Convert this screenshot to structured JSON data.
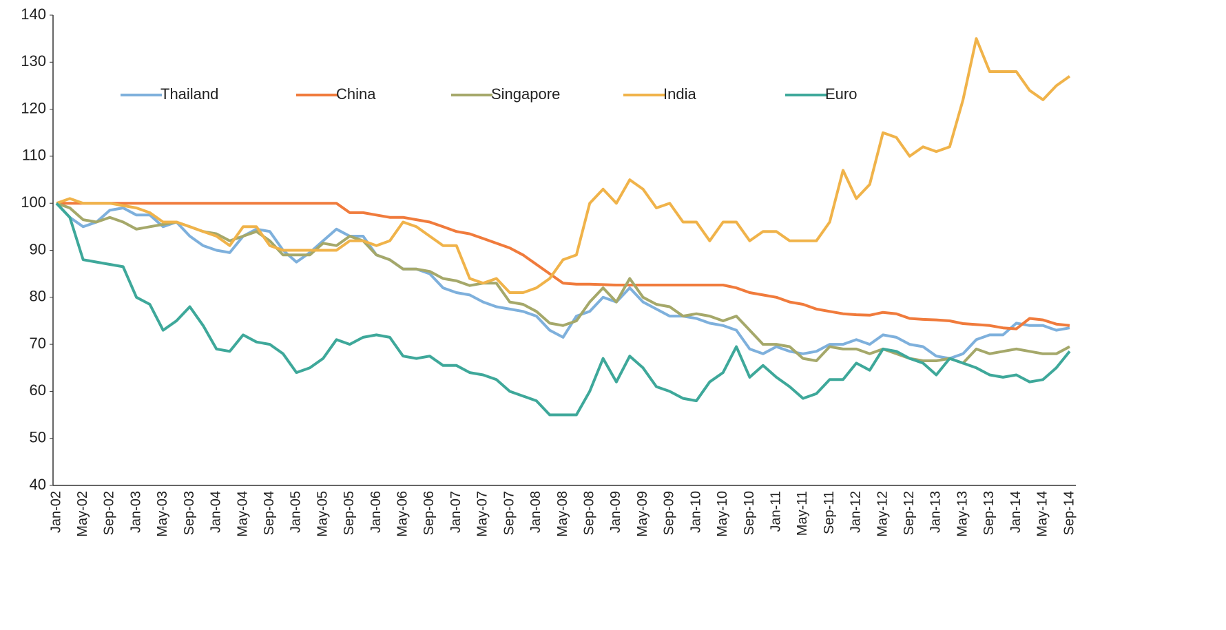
{
  "chart_data": {
    "type": "line",
    "categories": [
      "Jan-02",
      null,
      "May-02",
      null,
      "Sep-02",
      null,
      "Jan-03",
      null,
      "May-03",
      null,
      "Sep-03",
      null,
      "Jan-04",
      null,
      "May-04",
      null,
      "Sep-04",
      null,
      "Jan-05",
      null,
      "May-05",
      null,
      "Sep-05",
      null,
      "Jan-06",
      null,
      "May-06",
      null,
      "Sep-06",
      null,
      "Jan-07",
      null,
      "May-07",
      null,
      "Sep-07",
      null,
      "Jan-08",
      null,
      "May-08",
      null,
      "Sep-08",
      null,
      "Jan-09",
      null,
      "May-09",
      null,
      "Sep-09",
      null,
      "Jan-10",
      null,
      "May-10",
      null,
      "Sep-10",
      null,
      "Jan-11",
      null,
      "May-11",
      null,
      "Sep-11",
      null,
      "Jan-12",
      null,
      "May-12",
      null,
      "Sep-12",
      null,
      "Jan-13",
      null,
      "May-13",
      null,
      "Sep-13",
      null,
      "Jan-14",
      null,
      "May-14",
      null,
      "Sep-14"
    ],
    "series": [
      {
        "name": "Thailand",
        "color": "#7eb0dc",
        "values": [
          100,
          97,
          95,
          96,
          98.5,
          99,
          97.5,
          97.5,
          95,
          96,
          93,
          91,
          90,
          89.5,
          93,
          94.5,
          94,
          90,
          87.5,
          89.5,
          92,
          94.5,
          93,
          93,
          89,
          88,
          86,
          86,
          85,
          82,
          81,
          80.5,
          79,
          78,
          77.5,
          77,
          76,
          73,
          71.5,
          76,
          77,
          80,
          79,
          82,
          79,
          77.5,
          76,
          76,
          75.5,
          74.5,
          74,
          73,
          69,
          68,
          69.5,
          68.5,
          68,
          68.5,
          70,
          70,
          71,
          70,
          72,
          71.5,
          70,
          69.5,
          67.5,
          67,
          68,
          71,
          72,
          72,
          74.5,
          74,
          74,
          73,
          73.5
        ]
      },
      {
        "name": "China",
        "color": "#f07b3c",
        "values": [
          100,
          100,
          100,
          100,
          100,
          100,
          100,
          100,
          100,
          100,
          100,
          100,
          100,
          100,
          100,
          100,
          100,
          100,
          100,
          100,
          100,
          100,
          98,
          98,
          97.5,
          97,
          97,
          96.5,
          96,
          95,
          94,
          93.5,
          92.5,
          91.5,
          90.5,
          89,
          87,
          85,
          83,
          82.8,
          82.8,
          82.7,
          82.6,
          82.6,
          82.6,
          82.6,
          82.6,
          82.6,
          82.6,
          82.6,
          82.6,
          82,
          81,
          80.5,
          80,
          79,
          78.5,
          77.5,
          77,
          76.5,
          76.3,
          76.2,
          76.8,
          76.5,
          75.5,
          75.3,
          75.2,
          75,
          74.4,
          74.2,
          74,
          73.5,
          73.3,
          75.5,
          75.2,
          74.3,
          74
        ]
      },
      {
        "name": "Singapore",
        "color": "#a5a86a",
        "values": [
          100,
          99,
          96.5,
          96,
          97,
          96,
          94.5,
          95,
          95.5,
          96,
          95,
          94,
          93.5,
          92,
          93,
          94,
          92,
          89,
          89,
          89,
          91.5,
          91,
          93,
          92,
          89,
          88,
          86,
          86,
          85.5,
          84,
          83.5,
          82.5,
          83,
          83,
          79,
          78.5,
          77,
          74.5,
          74,
          75,
          79,
          82,
          79,
          84,
          80,
          78.5,
          78,
          76,
          76.5,
          76,
          75,
          76,
          73,
          70,
          70,
          69.5,
          67,
          66.5,
          69.5,
          69,
          69,
          68,
          69,
          68,
          67,
          66.5,
          66.5,
          67,
          66,
          69,
          68,
          68.5,
          69,
          68.5,
          68,
          68,
          69.5
        ]
      },
      {
        "name": "India",
        "color": "#f0b34a",
        "values": [
          100,
          101,
          100,
          100,
          100,
          99.5,
          99,
          98,
          96,
          96,
          95,
          94,
          93,
          91,
          95,
          95,
          91,
          90,
          90,
          90,
          90,
          90,
          92,
          92,
          91,
          92,
          96,
          95,
          93,
          91,
          91,
          84,
          83,
          84,
          81,
          81,
          82,
          84,
          88,
          89,
          100,
          103,
          100,
          105,
          103,
          99,
          100,
          96,
          96,
          92,
          96,
          96,
          92,
          94,
          94,
          92,
          92,
          92,
          96,
          107,
          101,
          104,
          115,
          114,
          110,
          112,
          111,
          112,
          122,
          135,
          128,
          128,
          128,
          124,
          122,
          125,
          127
        ]
      },
      {
        "name": "Euro",
        "color": "#3ea89a",
        "values": [
          100,
          97,
          88,
          87.5,
          87,
          86.5,
          80,
          78.5,
          73,
          75,
          78,
          74,
          69,
          68.5,
          72,
          70.5,
          70,
          68,
          64,
          65,
          67,
          71,
          70,
          71.5,
          72,
          71.5,
          67.5,
          67,
          67.5,
          65.5,
          65.5,
          64,
          63.5,
          62.5,
          60,
          59,
          58,
          55,
          55,
          55,
          60,
          67,
          62,
          67.5,
          65,
          61,
          60,
          58.5,
          58,
          62,
          64,
          69.5,
          63,
          65.5,
          63,
          61,
          58.5,
          59.5,
          62.5,
          62.5,
          66,
          64.5,
          69,
          68.5,
          67,
          66,
          63.5,
          67,
          66,
          65,
          63.5,
          63,
          63.5,
          62,
          62.5,
          65,
          68.5
        ]
      }
    ],
    "ylim": [
      40,
      140
    ],
    "yticks": [
      40,
      50,
      60,
      70,
      80,
      90,
      100,
      110,
      120,
      130,
      140
    ],
    "grid": false
  }
}
